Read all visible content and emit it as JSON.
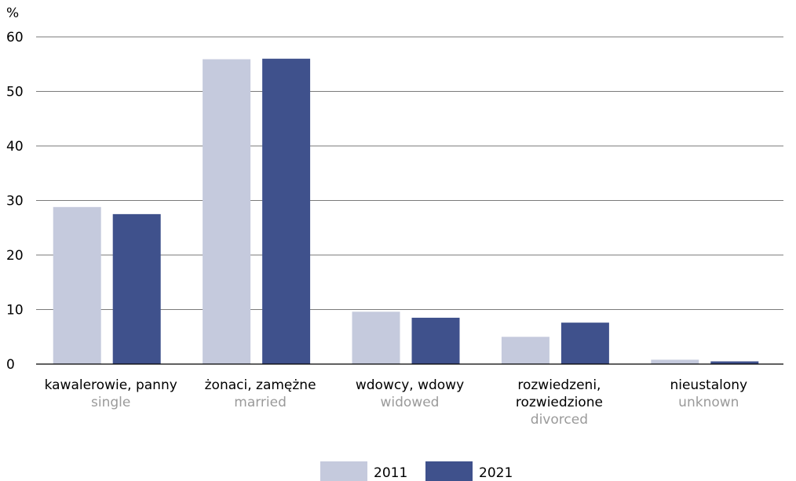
{
  "chart_data": {
    "type": "bar",
    "unit_label": "%",
    "categories": [
      {
        "pl": [
          "kawalerowie, panny"
        ],
        "en": "single"
      },
      {
        "pl": [
          "żonaci, zamężne"
        ],
        "en": "married"
      },
      {
        "pl": [
          "wdowcy, wdowy"
        ],
        "en": "widowed"
      },
      {
        "pl": [
          "rozwiedzeni,",
          "rozwiedzione"
        ],
        "en": "divorced"
      },
      {
        "pl": [
          "nieustalony"
        ],
        "en": "unknown"
      }
    ],
    "series": [
      {
        "name": "2011",
        "color": "#c5cadd",
        "values": [
          28.8,
          55.9,
          9.6,
          5.0,
          0.8
        ]
      },
      {
        "name": "2021",
        "color": "#3f518c",
        "values": [
          27.5,
          56.0,
          8.5,
          7.6,
          0.5
        ]
      }
    ],
    "ylim": [
      0,
      60
    ],
    "yticks": [
      0,
      10,
      20,
      30,
      40,
      50,
      60
    ],
    "grid": true,
    "legend_position": "bottom-center"
  }
}
